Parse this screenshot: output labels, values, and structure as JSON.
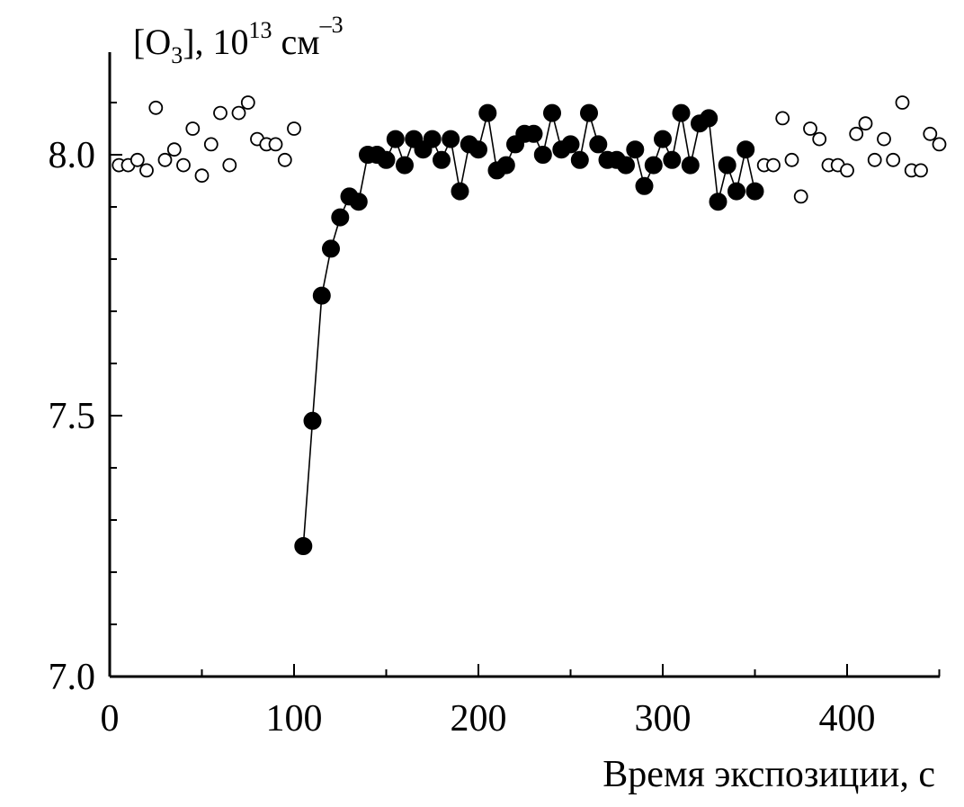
{
  "chart_data": {
    "type": "scatter",
    "title": "",
    "ylabel": {
      "prefix": "[O",
      "subscript": "3",
      "middle": "], 10",
      "superscript1": "13",
      "unit": " см",
      "superscript2": "–3"
    },
    "xlabel": "Время экспозиции, с",
    "xlim": [
      0,
      450
    ],
    "ylim": [
      7.0,
      8.2
    ],
    "x_ticks": [
      0,
      100,
      200,
      300,
      400
    ],
    "x_tick_labels": [
      "0",
      "100",
      "200",
      "300",
      "400"
    ],
    "y_ticks": [
      7.0,
      7.5,
      8.0
    ],
    "y_tick_labels": [
      "7.0",
      "7.5",
      "8.0"
    ],
    "grid": false,
    "series": [
      {
        "marker": "open-circle",
        "connected": false,
        "points": [
          [
            5,
            7.98
          ],
          [
            10,
            7.98
          ],
          [
            15,
            7.99
          ],
          [
            20,
            7.97
          ],
          [
            25,
            8.09
          ],
          [
            30,
            7.99
          ],
          [
            35,
            8.01
          ],
          [
            40,
            7.98
          ],
          [
            45,
            8.05
          ],
          [
            50,
            7.96
          ],
          [
            55,
            8.02
          ],
          [
            60,
            8.08
          ],
          [
            65,
            7.98
          ],
          [
            70,
            8.08
          ],
          [
            75,
            8.1
          ],
          [
            80,
            8.03
          ],
          [
            85,
            8.02
          ],
          [
            90,
            8.02
          ],
          [
            95,
            7.99
          ],
          [
            100,
            8.05
          ],
          [
            355,
            7.98
          ],
          [
            360,
            7.98
          ],
          [
            365,
            8.07
          ],
          [
            370,
            7.99
          ],
          [
            375,
            7.92
          ],
          [
            380,
            8.05
          ],
          [
            385,
            8.03
          ],
          [
            390,
            7.98
          ],
          [
            395,
            7.98
          ],
          [
            400,
            7.97
          ],
          [
            405,
            8.04
          ],
          [
            410,
            8.06
          ],
          [
            415,
            7.99
          ],
          [
            420,
            8.03
          ],
          [
            425,
            7.99
          ],
          [
            430,
            8.1
          ],
          [
            435,
            7.97
          ],
          [
            440,
            7.97
          ],
          [
            445,
            8.04
          ],
          [
            450,
            8.02
          ]
        ]
      },
      {
        "marker": "filled-circle",
        "connected": true,
        "points": [
          [
            105,
            7.25
          ],
          [
            110,
            7.49
          ],
          [
            115,
            7.73
          ],
          [
            120,
            7.82
          ],
          [
            125,
            7.88
          ],
          [
            130,
            7.92
          ],
          [
            135,
            7.91
          ],
          [
            140,
            8.0
          ],
          [
            145,
            8.0
          ],
          [
            150,
            7.99
          ],
          [
            155,
            8.03
          ],
          [
            160,
            7.98
          ],
          [
            165,
            8.03
          ],
          [
            170,
            8.01
          ],
          [
            175,
            8.03
          ],
          [
            180,
            7.99
          ],
          [
            185,
            8.03
          ],
          [
            190,
            7.93
          ],
          [
            195,
            8.02
          ],
          [
            200,
            8.01
          ],
          [
            205,
            8.08
          ],
          [
            210,
            7.97
          ],
          [
            215,
            7.98
          ],
          [
            220,
            8.02
          ],
          [
            225,
            8.04
          ],
          [
            230,
            8.04
          ],
          [
            235,
            8.0
          ],
          [
            240,
            8.08
          ],
          [
            245,
            8.01
          ],
          [
            250,
            8.02
          ],
          [
            255,
            7.99
          ],
          [
            260,
            8.08
          ],
          [
            265,
            8.02
          ],
          [
            270,
            7.99
          ],
          [
            275,
            7.99
          ],
          [
            280,
            7.98
          ],
          [
            285,
            8.01
          ],
          [
            290,
            7.94
          ],
          [
            295,
            7.98
          ],
          [
            300,
            8.03
          ],
          [
            305,
            7.99
          ],
          [
            310,
            8.08
          ],
          [
            315,
            7.98
          ],
          [
            320,
            8.06
          ],
          [
            325,
            8.07
          ],
          [
            330,
            7.91
          ],
          [
            335,
            7.98
          ],
          [
            340,
            7.93
          ],
          [
            345,
            8.01
          ],
          [
            350,
            7.93
          ]
        ]
      }
    ]
  }
}
